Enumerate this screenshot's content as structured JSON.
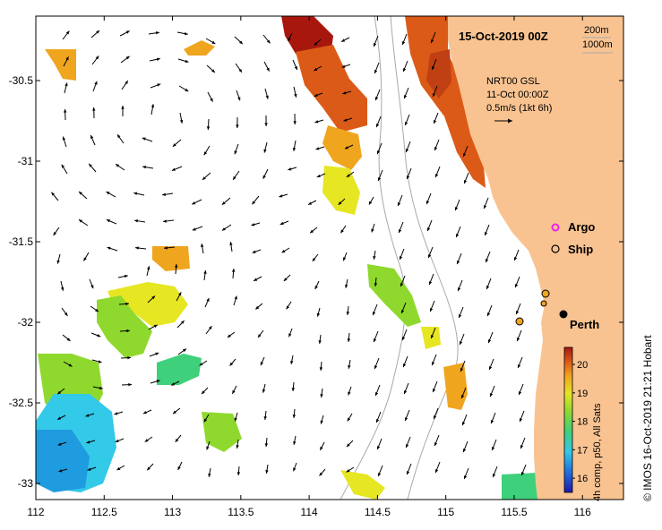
{
  "title": "15-Oct-2019 00Z",
  "depth_legend": {
    "shallow": "200m",
    "deep": "1000m"
  },
  "current_info": {
    "source": "NRT00 GSL",
    "date": "11-Oct 00:00Z",
    "scale": "0.5m/s (1kt 6h)"
  },
  "legend": {
    "argo": "Argo",
    "ship": "Ship"
  },
  "city": "Perth",
  "colorbar": {
    "label": "4h comp, p50, All Sats",
    "ticks": [
      "16",
      "17",
      "18",
      "19",
      "20"
    ],
    "range": [
      15.5,
      20.6
    ]
  },
  "credit": "© IMOS 16-Oct-2019 21:21 Hobart",
  "axes": {
    "x_ticks": [
      "112",
      "112.5",
      "113",
      "113.5",
      "114",
      "114.5",
      "115",
      "115.5",
      "116"
    ],
    "y_ticks": [
      "-30.5",
      "-31",
      "-31.5",
      "-32",
      "-32.5",
      "-33"
    ],
    "lon_range": [
      112,
      116.3
    ],
    "lat_range": [
      -33.1,
      -30.1
    ]
  },
  "colors": {
    "land": "#f9c391",
    "ocean": "#ffffff",
    "isobath": "#a8a8a8"
  }
}
